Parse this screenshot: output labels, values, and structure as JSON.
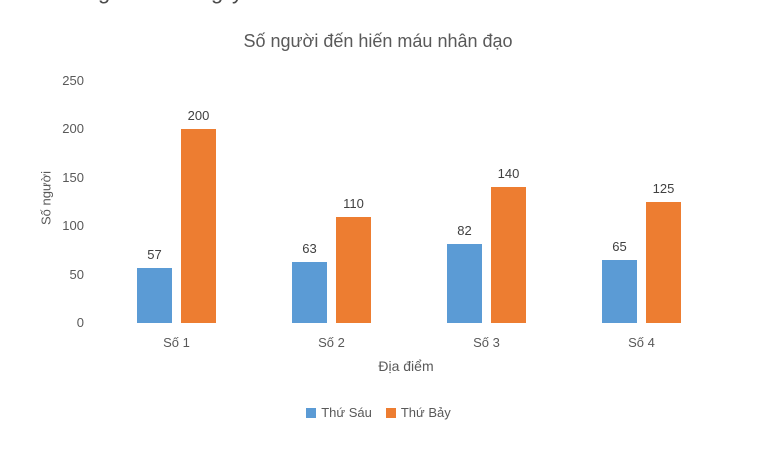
{
  "clipped_top_text": {
    "fragments": [
      "g",
      "g",
      "y"
    ]
  },
  "chart_data": {
    "type": "bar",
    "title": "Số người đến hiến máu nhân đạo",
    "xlabel": "Địa điểm",
    "ylabel": "Số người",
    "categories": [
      "Số 1",
      "Số 2",
      "Số 3",
      "Số 4"
    ],
    "series": [
      {
        "name": "Thứ Sáu",
        "color": "#5B9BD5",
        "values": [
          57,
          63,
          82,
          65
        ]
      },
      {
        "name": "Thứ Bảy",
        "color": "#ED7D31",
        "values": [
          200,
          110,
          140,
          125
        ]
      }
    ],
    "ylim": [
      0,
      250
    ],
    "yticks": [
      0,
      50,
      100,
      150,
      200,
      250
    ],
    "grid": false,
    "axis_lines": false,
    "legend_position": "bottom",
    "data_labels": true,
    "colors": {
      "text": "#595959",
      "data_label": "#404040",
      "background": "#ffffff"
    }
  }
}
